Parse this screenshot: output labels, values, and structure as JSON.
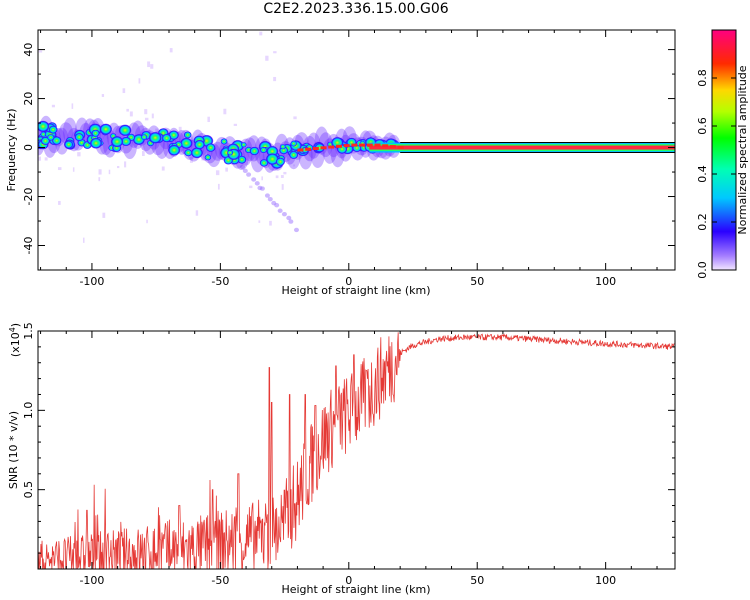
{
  "title": "C2E2.2023.336.15.00.G06",
  "colors": {
    "snr_line": "#e53935",
    "axis": "#000000",
    "background": "#ffffff"
  },
  "chart_data": [
    {
      "type": "heatmap",
      "name": "spectrogram",
      "xlabel": "Height of straight line (km)",
      "ylabel": "Frequency (Hz)",
      "xlim": [
        -121,
        127
      ],
      "ylim": [
        -50,
        48
      ],
      "xticks": [
        "-100",
        "-50",
        "0",
        "50",
        "100"
      ],
      "xtick_values": [
        -100,
        -50,
        0,
        50,
        100
      ],
      "yticks": [
        "40",
        "20",
        "0",
        "-20",
        "-40"
      ],
      "ytick_values": [
        40,
        20,
        0,
        -20,
        -40
      ],
      "ridge": [
        {
          "x": -120,
          "y": 5
        },
        {
          "x": -100,
          "y": 4
        },
        {
          "x": -80,
          "y": 3
        },
        {
          "x": -60,
          "y": 1
        },
        {
          "x": -45,
          "y": -2
        },
        {
          "x": -30,
          "y": -3
        },
        {
          "x": -20,
          "y": -1
        },
        {
          "x": -10,
          "y": 0
        },
        {
          "x": 0,
          "y": 1
        },
        {
          "x": 10,
          "y": 1
        },
        {
          "x": 20,
          "y": 0
        },
        {
          "x": 127,
          "y": 0
        }
      ],
      "carrier_band": {
        "from": 20,
        "to": 127,
        "freq": 0
      }
    },
    {
      "type": "colorbar",
      "name": "amplitude-colorbar",
      "label": "Normalized spectral amplitude",
      "range": [
        0,
        1
      ],
      "ticks": [
        "0.0",
        "0.2",
        "0.4",
        "0.6",
        "0.8"
      ],
      "tick_values": [
        0,
        0.2,
        0.4,
        0.6,
        0.8
      ]
    },
    {
      "type": "line",
      "name": "snr-series",
      "xlabel": "Height of straight line (km)",
      "ylabel": "SNR (10 * v/v)",
      "scale_label": "(x10",
      "scale_exp": "4",
      "scale_close": ")",
      "xlim": [
        -121,
        127
      ],
      "ylim": [
        0,
        1.5
      ],
      "xticks": [
        "-100",
        "-50",
        "0",
        "50",
        "100"
      ],
      "xtick_values": [
        -100,
        -50,
        0,
        50,
        100
      ],
      "yticks": [
        "1.5",
        "1.0",
        "0.5"
      ],
      "ytick_values": [
        1.5,
        1.0,
        0.5
      ],
      "trend": [
        {
          "x": -121,
          "y": 0.06
        },
        {
          "x": -100,
          "y": 0.08
        },
        {
          "x": -80,
          "y": 0.1
        },
        {
          "x": -60,
          "y": 0.13
        },
        {
          "x": -40,
          "y": 0.18
        },
        {
          "x": -30,
          "y": 0.22
        },
        {
          "x": -25,
          "y": 0.3
        },
        {
          "x": -20,
          "y": 0.45
        },
        {
          "x": -15,
          "y": 0.65
        },
        {
          "x": -10,
          "y": 0.82
        },
        {
          "x": -5,
          "y": 0.92
        },
        {
          "x": 0,
          "y": 0.98
        },
        {
          "x": 5,
          "y": 1.05
        },
        {
          "x": 10,
          "y": 1.15
        },
        {
          "x": 15,
          "y": 1.26
        },
        {
          "x": 20,
          "y": 1.36
        },
        {
          "x": 25,
          "y": 1.41
        },
        {
          "x": 35,
          "y": 1.45
        },
        {
          "x": 45,
          "y": 1.46
        },
        {
          "x": 60,
          "y": 1.46
        },
        {
          "x": 80,
          "y": 1.44
        },
        {
          "x": 100,
          "y": 1.42
        },
        {
          "x": 127,
          "y": 1.4
        }
      ],
      "spikes": [
        {
          "x": -102,
          "y": 0.37
        },
        {
          "x": -66,
          "y": 0.4
        },
        {
          "x": -53,
          "y": 0.5
        },
        {
          "x": -43,
          "y": 0.6
        },
        {
          "x": -31,
          "y": 1.27
        },
        {
          "x": -30,
          "y": 1.05
        },
        {
          "x": -23,
          "y": 1.1
        },
        {
          "x": -17,
          "y": 1.1
        },
        {
          "x": -13,
          "y": 1.03
        },
        {
          "x": -5,
          "y": 1.28
        },
        {
          "x": 2,
          "y": 1.35
        },
        {
          "x": 7,
          "y": 1.25
        }
      ]
    }
  ]
}
